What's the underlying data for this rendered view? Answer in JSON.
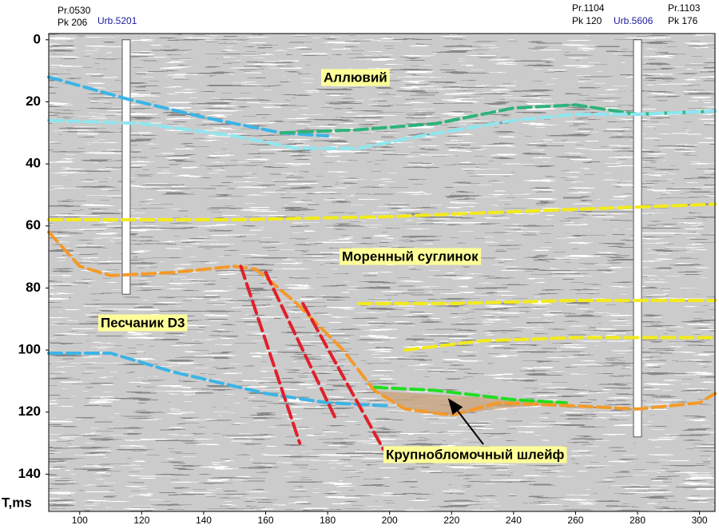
{
  "chart_data": {
    "type": "line",
    "y_label": "T,ms",
    "xlim": [
      90,
      305
    ],
    "ylim": [
      -2,
      152
    ],
    "y_inverted": true,
    "xticks": [
      100,
      120,
      140,
      160,
      180,
      200,
      220,
      240,
      260,
      280,
      300
    ],
    "yticks": [
      0,
      20,
      40,
      60,
      80,
      100,
      120,
      140
    ],
    "header_labels": [
      "Pr.0530",
      "Pk 206",
      "Urb.5201",
      "Pr.1104",
      "Pk 120",
      "Urb.5606",
      "Pr.1103",
      "Pk 176"
    ],
    "annotations": [
      "Аллювий",
      "Моренный суглинок",
      "Песчаник D3",
      "Крупнобломочный шлейф"
    ],
    "wells": {
      "x": [
        115,
        280
      ],
      "bottom": [
        82,
        128
      ],
      "color": "#ffffff"
    },
    "series": [
      {
        "color": "#3cb4e6",
        "x": [
          90,
          115,
          140,
          165,
          180
        ],
        "values": [
          12,
          19,
          25,
          30,
          31
        ]
      },
      {
        "color": "#2fb37a",
        "x": [
          165,
          190,
          215,
          240,
          260,
          280,
          305
        ],
        "values": [
          30,
          29,
          27,
          22,
          21,
          24,
          23
        ]
      },
      {
        "color": "#8fe6f0",
        "x": [
          90,
          120,
          150,
          170,
          190,
          210,
          240,
          260,
          280,
          305
        ],
        "values": [
          26,
          27,
          31,
          35,
          35,
          31,
          26,
          24,
          24,
          23
        ]
      },
      {
        "color": "#f2ea1c",
        "x": [
          90,
          150,
          200,
          250,
          305
        ],
        "values": [
          58,
          58,
          57,
          55,
          53
        ]
      },
      {
        "color": "#f2ea1c",
        "x": [
          190,
          220,
          260,
          305
        ],
        "values": [
          85,
          85,
          84,
          84
        ]
      },
      {
        "color": "#f2ea1c",
        "x": [
          205,
          230,
          260,
          305
        ],
        "values": [
          100,
          97,
          96,
          96
        ]
      },
      {
        "color": "#3cb4e6",
        "x": [
          90,
          110,
          130,
          160,
          180,
          200
        ],
        "values": [
          101,
          101,
          107,
          114,
          117,
          118
        ]
      },
      {
        "color": "#22dd22",
        "x": [
          195,
          215,
          240,
          257
        ],
        "values": [
          112,
          113,
          116,
          117
        ]
      },
      {
        "color": "#f39a2a",
        "x": [
          90,
          100,
          110,
          130,
          150,
          157,
          170,
          185,
          195,
          205,
          220,
          235,
          260,
          280,
          300,
          305
        ],
        "values": [
          62,
          73,
          76,
          75,
          73,
          74,
          85,
          100,
          113,
          119,
          121,
          117,
          118,
          119,
          117,
          114
        ]
      },
      {
        "color": "#e0202a",
        "x": [
          152,
          171
        ],
        "values": [
          73,
          130
        ]
      },
      {
        "color": "#e0202a",
        "x": [
          160,
          183
        ],
        "values": [
          75,
          123
        ]
      },
      {
        "color": "#e0202a",
        "x": [
          172,
          198
        ],
        "values": [
          85,
          132
        ]
      }
    ]
  }
}
